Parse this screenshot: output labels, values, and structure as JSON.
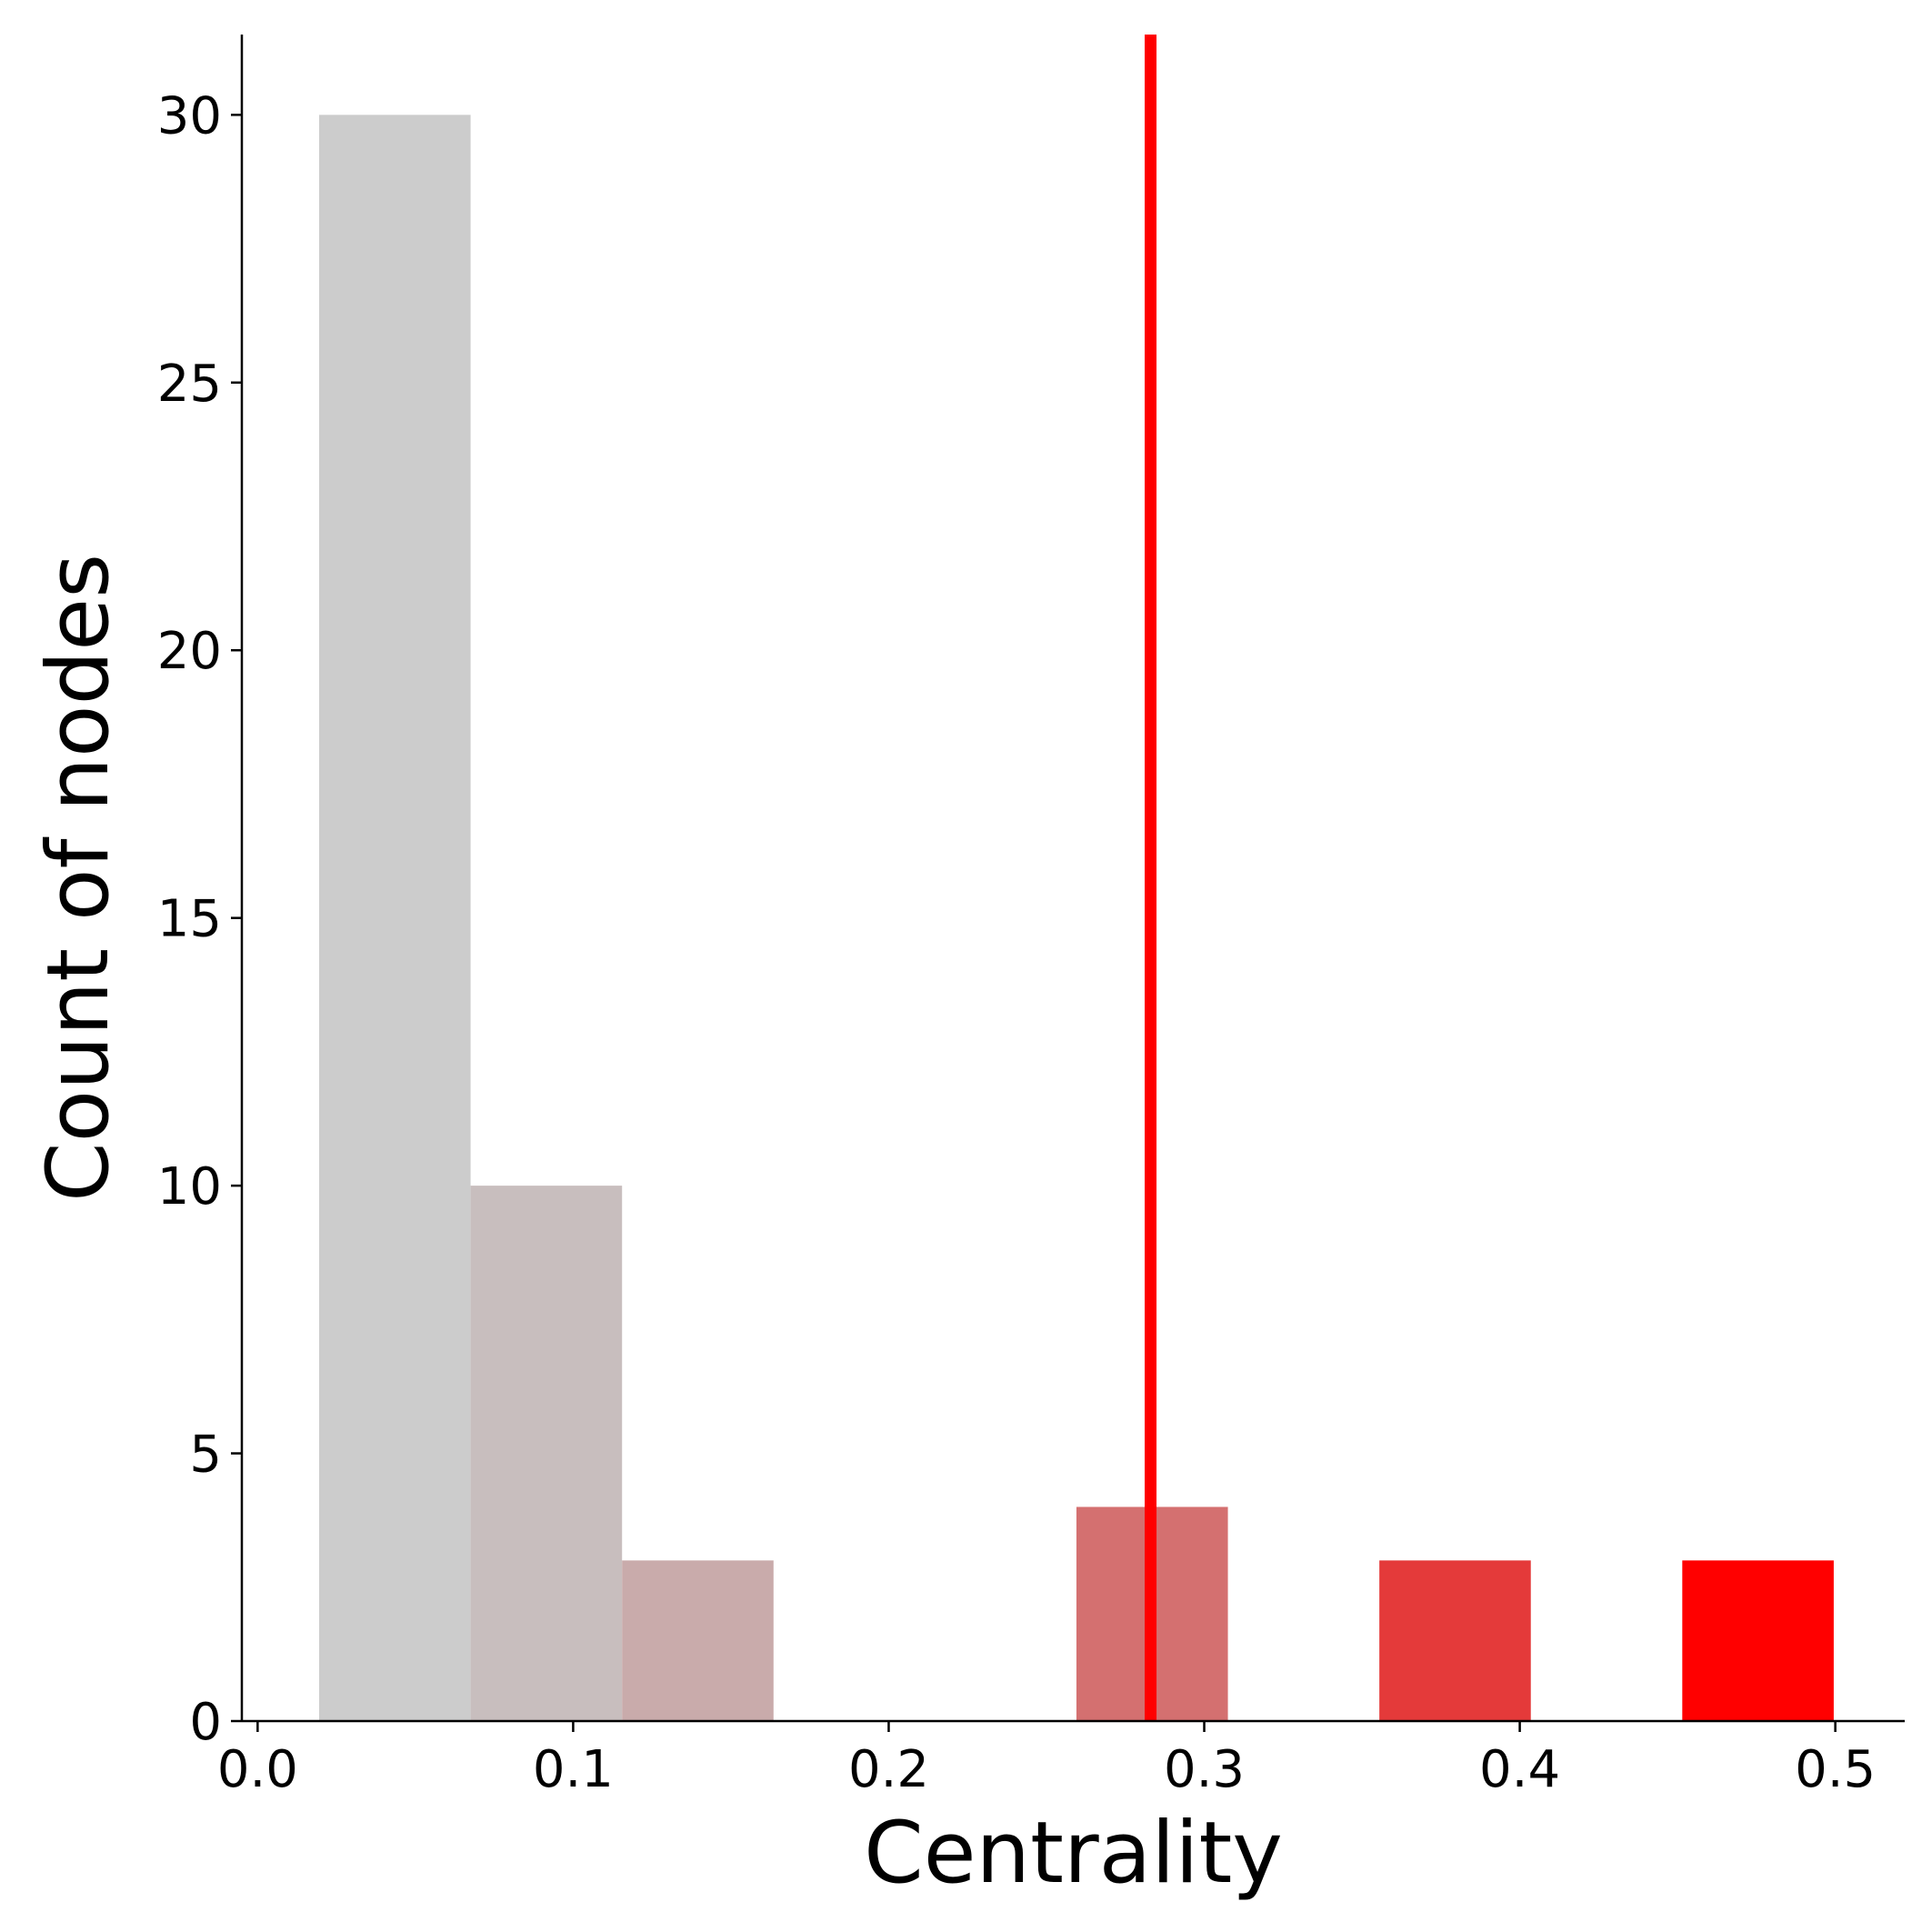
{
  "chart_data": {
    "type": "bar",
    "subtype": "histogram",
    "xlabel": "Centrality",
    "ylabel": "Count of nodes",
    "xlim": [
      -0.005,
      0.522
    ],
    "ylim": [
      0,
      31.5
    ],
    "grid": false,
    "x_ticks": [
      0.0,
      0.1,
      0.2,
      0.3,
      0.4,
      0.5
    ],
    "x_tick_labels": [
      "0.0",
      "0.1",
      "0.2",
      "0.3",
      "0.4",
      "0.5"
    ],
    "y_ticks": [
      0,
      5,
      10,
      15,
      20,
      25,
      30
    ],
    "y_tick_labels": [
      "0",
      "5",
      "10",
      "15",
      "20",
      "25",
      "30"
    ],
    "bins": [
      {
        "x0": 0.0195,
        "x1": 0.0675,
        "count": 30,
        "color": "#cccccc"
      },
      {
        "x0": 0.0675,
        "x1": 0.1155,
        "count": 10,
        "color": "#c8bebe"
      },
      {
        "x0": 0.1155,
        "x1": 0.1635,
        "count": 3,
        "color": "#c9abab"
      },
      {
        "x0": 0.1635,
        "x1": 0.2115,
        "count": 0,
        "color": "#c99999"
      },
      {
        "x0": 0.2115,
        "x1": 0.2595,
        "count": 0,
        "color": "#cf8585"
      },
      {
        "x0": 0.2595,
        "x1": 0.3075,
        "count": 4,
        "color": "#d47070"
      },
      {
        "x0": 0.3075,
        "x1": 0.3555,
        "count": 0,
        "color": "#da5555"
      },
      {
        "x0": 0.3555,
        "x1": 0.4035,
        "count": 3,
        "color": "#e43a3a"
      },
      {
        "x0": 0.4035,
        "x1": 0.4515,
        "count": 0,
        "color": "#ef1d1d"
      },
      {
        "x0": 0.4515,
        "x1": 0.4995,
        "count": 3,
        "color": "#ff0000"
      }
    ],
    "reference_line": {
      "x": 0.283,
      "color": "#ff0000"
    }
  }
}
